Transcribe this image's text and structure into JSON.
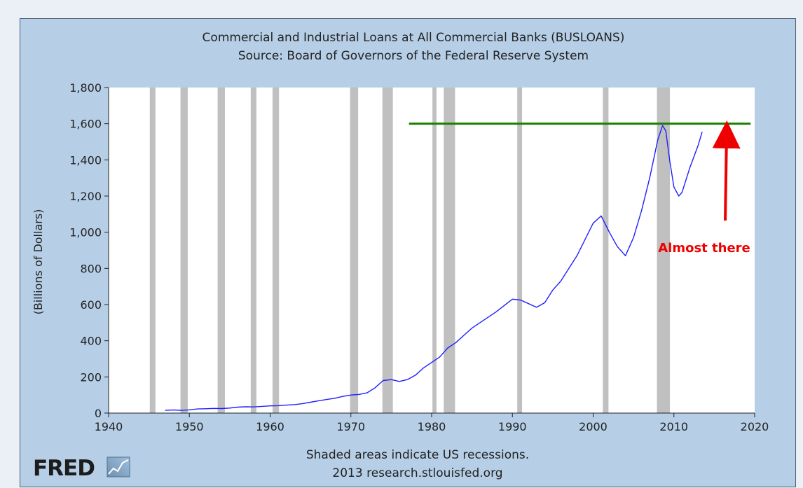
{
  "chart_data": {
    "type": "line",
    "title": "Commercial and Industrial Loans at All Commercial Banks (BUSLOANS)",
    "subtitle": "Source: Board of Governors of the Federal Reserve System",
    "ylabel": "(Billions of Dollars)",
    "xlim": [
      1940,
      2020
    ],
    "ylim": [
      0,
      1800
    ],
    "x_ticks": [
      1940,
      1950,
      1960,
      1970,
      1980,
      1990,
      2000,
      2010,
      2020
    ],
    "y_ticks": [
      0,
      200,
      400,
      600,
      800,
      1000,
      1200,
      1400,
      1600,
      1800
    ],
    "y_tick_labels": [
      "0",
      "200",
      "400",
      "600",
      "800",
      "1,000",
      "1,200",
      "1,400",
      "1,600",
      "1,800"
    ],
    "grid": false,
    "recessions": [
      [
        1945.1,
        1945.8
      ],
      [
        1948.9,
        1949.8
      ],
      [
        1953.5,
        1954.4
      ],
      [
        1957.6,
        1958.3
      ],
      [
        1960.3,
        1961.1
      ],
      [
        1969.9,
        1970.9
      ],
      [
        1973.9,
        1975.2
      ],
      [
        1980.1,
        1980.6
      ],
      [
        1981.5,
        1982.9
      ],
      [
        1990.6,
        1991.2
      ],
      [
        2001.2,
        2001.9
      ],
      [
        2007.9,
        2009.5
      ]
    ],
    "series": [
      {
        "color": "#1f1fff",
        "points": [
          [
            1947,
            15
          ],
          [
            1948,
            17
          ],
          [
            1949,
            15
          ],
          [
            1950,
            18
          ],
          [
            1951,
            23
          ],
          [
            1952,
            24
          ],
          [
            1953,
            26
          ],
          [
            1954,
            25
          ],
          [
            1955,
            28
          ],
          [
            1956,
            33
          ],
          [
            1957,
            35
          ],
          [
            1958,
            34
          ],
          [
            1959,
            37
          ],
          [
            1960,
            40
          ],
          [
            1961,
            41
          ],
          [
            1962,
            44
          ],
          [
            1963,
            47
          ],
          [
            1964,
            52
          ],
          [
            1965,
            60
          ],
          [
            1966,
            68
          ],
          [
            1967,
            75
          ],
          [
            1968,
            82
          ],
          [
            1969,
            92
          ],
          [
            1970,
            100
          ],
          [
            1971,
            103
          ],
          [
            1972,
            112
          ],
          [
            1973,
            140
          ],
          [
            1974,
            180
          ],
          [
            1975,
            185
          ],
          [
            1976,
            175
          ],
          [
            1977,
            185
          ],
          [
            1978,
            210
          ],
          [
            1979,
            250
          ],
          [
            1980,
            280
          ],
          [
            1981,
            310
          ],
          [
            1982,
            360
          ],
          [
            1983,
            390
          ],
          [
            1984,
            430
          ],
          [
            1985,
            470
          ],
          [
            1986,
            500
          ],
          [
            1987,
            530
          ],
          [
            1988,
            560
          ],
          [
            1989,
            595
          ],
          [
            1990,
            630
          ],
          [
            1991,
            625
          ],
          [
            1992,
            605
          ],
          [
            1993,
            585
          ],
          [
            1994,
            610
          ],
          [
            1995,
            680
          ],
          [
            1996,
            730
          ],
          [
            1997,
            800
          ],
          [
            1998,
            870
          ],
          [
            1999,
            960
          ],
          [
            2000,
            1050
          ],
          [
            2001,
            1090
          ],
          [
            2002,
            1000
          ],
          [
            2003,
            920
          ],
          [
            2004,
            870
          ],
          [
            2005,
            970
          ],
          [
            2006,
            1120
          ],
          [
            2007,
            1300
          ],
          [
            2008,
            1510
          ],
          [
            2008.6,
            1590
          ],
          [
            2009,
            1560
          ],
          [
            2009.5,
            1390
          ],
          [
            2010,
            1250
          ],
          [
            2010.6,
            1200
          ],
          [
            2011,
            1220
          ],
          [
            2012,
            1360
          ],
          [
            2013,
            1480
          ],
          [
            2013.5,
            1555
          ]
        ]
      }
    ],
    "reference_line": {
      "x_start": 1977.2,
      "x_end": 2019.5,
      "y": 1600,
      "color": "#1a7f00"
    },
    "annotation": {
      "text": "Almost there",
      "color": "#ee0000"
    },
    "footer": [
      "Shaded areas indicate US recessions.",
      "2013 research.stlouisfed.org"
    ]
  },
  "logo": {
    "text": "FRED"
  },
  "colors": {
    "panel_bg": "#b6cfe7",
    "plot_bg": "#ffffff",
    "recession_shade": "#c0c0c0"
  }
}
